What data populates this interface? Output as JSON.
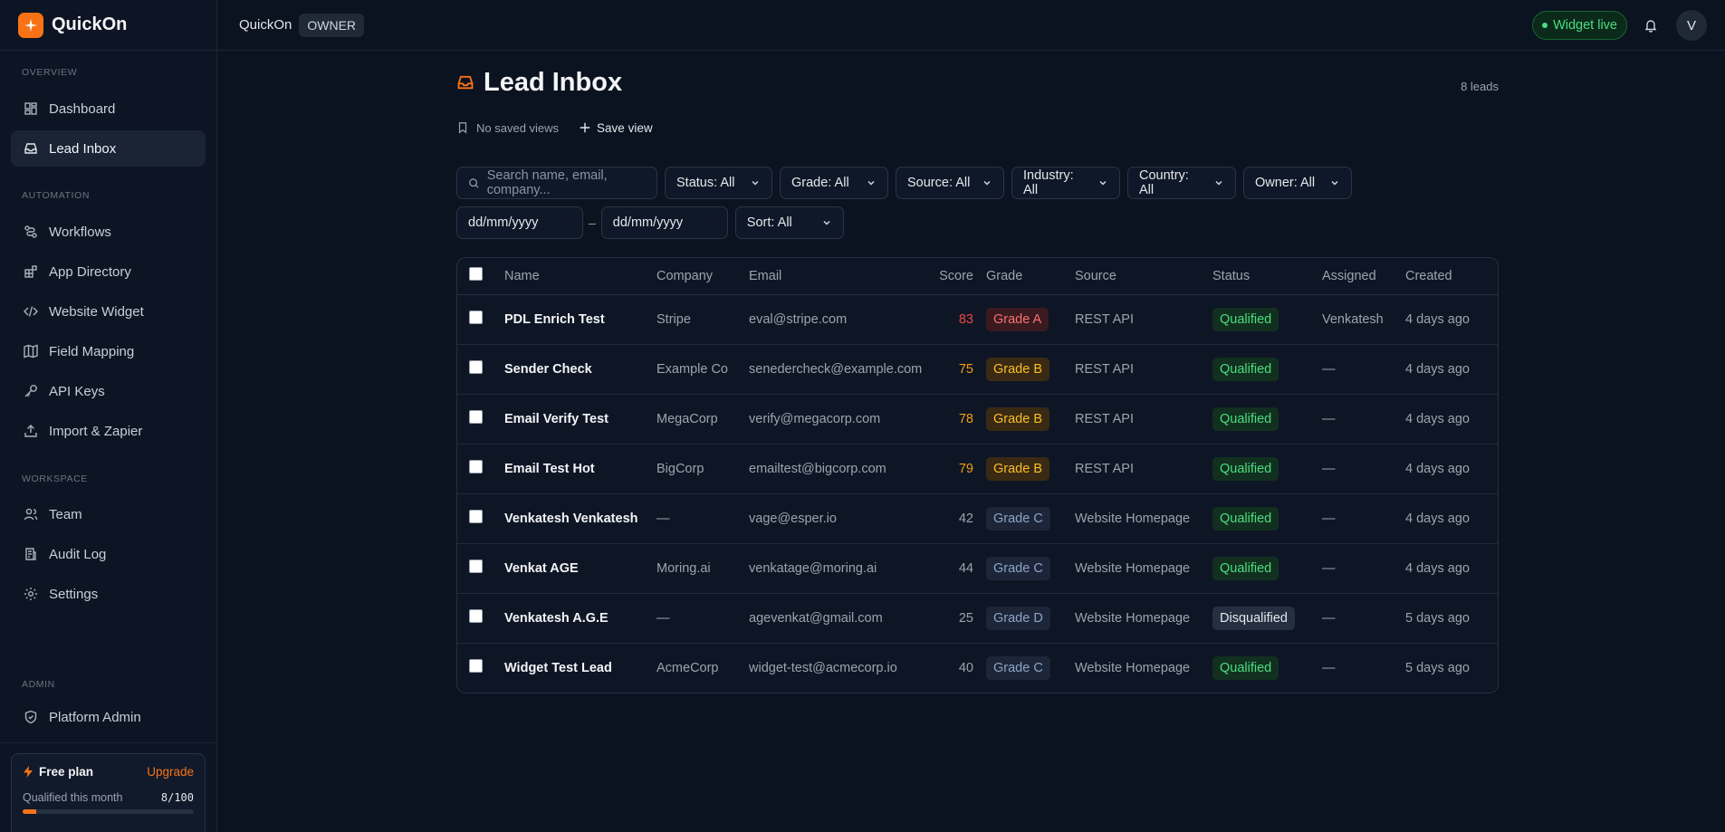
{
  "brand": {
    "name": "QuickOn"
  },
  "sidebar": {
    "sections": [
      {
        "label": "OVERVIEW",
        "items": [
          {
            "label": "Dashboard",
            "icon": "dashboard-icon",
            "active": false
          },
          {
            "label": "Lead Inbox",
            "icon": "inbox-icon",
            "active": true
          }
        ]
      },
      {
        "label": "AUTOMATION",
        "items": [
          {
            "label": "Workflows",
            "icon": "workflow-icon",
            "active": false
          },
          {
            "label": "App Directory",
            "icon": "apps-icon",
            "active": false
          },
          {
            "label": "Website Widget",
            "icon": "code-icon",
            "active": false
          },
          {
            "label": "Field Mapping",
            "icon": "map-icon",
            "active": false
          },
          {
            "label": "API Keys",
            "icon": "key-icon",
            "active": false
          },
          {
            "label": "Import & Zapier",
            "icon": "upload-icon",
            "active": false
          }
        ]
      },
      {
        "label": "WORKSPACE",
        "items": [
          {
            "label": "Team",
            "icon": "users-icon",
            "active": false
          },
          {
            "label": "Audit Log",
            "icon": "log-icon",
            "active": false
          },
          {
            "label": "Settings",
            "icon": "gear-icon",
            "active": false
          }
        ]
      },
      {
        "label": "ADMIN",
        "items": [
          {
            "label": "Platform Admin",
            "icon": "shield-icon",
            "active": false
          }
        ]
      }
    ],
    "plan": {
      "name": "Free plan",
      "upgrade_label": "Upgrade",
      "usage_label": "Qualified this month",
      "usage_value": "8/100",
      "usage_fraction": 0.08
    }
  },
  "topbar": {
    "workspace": "QuickOn",
    "role": "OWNER",
    "widget_status": "Widget live",
    "avatar_initial": "V"
  },
  "page": {
    "title": "Lead Inbox",
    "lead_count": "8 leads",
    "saved_views_label": "No saved views",
    "save_view_label": "Save view"
  },
  "filters": {
    "search_placeholder": "Search name, email, company...",
    "dropdowns": [
      "Status: All",
      "Grade: All",
      "Source: All",
      "Industry: All",
      "Country: All",
      "Owner: All"
    ],
    "date_from": "dd/mm/yyyy",
    "date_to": "dd/mm/yyyy",
    "date_separator": "–",
    "sort": "Sort: All"
  },
  "table": {
    "columns": [
      "Name",
      "Company",
      "Email",
      "Score",
      "Grade",
      "Source",
      "Status",
      "Assigned",
      "Created"
    ],
    "rows": [
      {
        "name": "PDL Enrich Test",
        "company": "Stripe",
        "email": "eval@stripe.com",
        "score": "83",
        "grade": "Grade A",
        "source": "REST API",
        "status": "Qualified",
        "assigned": "Venkatesh",
        "created": "4 days ago"
      },
      {
        "name": "Sender Check",
        "company": "Example Co",
        "email": "senedercheck@example.com",
        "score": "75",
        "grade": "Grade B",
        "source": "REST API",
        "status": "Qualified",
        "assigned": "—",
        "created": "4 days ago"
      },
      {
        "name": "Email Verify Test",
        "company": "MegaCorp",
        "email": "verify@megacorp.com",
        "score": "78",
        "grade": "Grade B",
        "source": "REST API",
        "status": "Qualified",
        "assigned": "—",
        "created": "4 days ago"
      },
      {
        "name": "Email Test Hot",
        "company": "BigCorp",
        "email": "emailtest@bigcorp.com",
        "score": "79",
        "grade": "Grade B",
        "source": "REST API",
        "status": "Qualified",
        "assigned": "—",
        "created": "4 days ago"
      },
      {
        "name": "Venkatesh Venkatesh",
        "company": "—",
        "email": "vage@esper.io",
        "score": "42",
        "grade": "Grade C",
        "source": "Website Homepage",
        "status": "Qualified",
        "assigned": "—",
        "created": "4 days ago"
      },
      {
        "name": "Venkat AGE",
        "company": "Moring.ai",
        "email": "venkatage@moring.ai",
        "score": "44",
        "grade": "Grade C",
        "source": "Website Homepage",
        "status": "Qualified",
        "assigned": "—",
        "created": "4 days ago"
      },
      {
        "name": "Venkatesh A.G.E",
        "company": "—",
        "email": "agevenkat@gmail.com",
        "score": "25",
        "grade": "Grade D",
        "source": "Website Homepage",
        "status": "Disqualified",
        "assigned": "—",
        "created": "5 days ago"
      },
      {
        "name": "Widget Test Lead",
        "company": "AcmeCorp",
        "email": "widget-test@acmecorp.io",
        "score": "40",
        "grade": "Grade C",
        "source": "Website Homepage",
        "status": "Qualified",
        "assigned": "—",
        "created": "5 days ago"
      }
    ]
  },
  "colors": {
    "accent": "#f97316",
    "grade_a_text": "#f87171",
    "grade_a_bg": "#3a1a1f",
    "grade_b_text": "#fbbf24",
    "grade_b_bg": "#3a2a14",
    "grade_c_text": "#8ea3c7",
    "grade_c_bg": "#1c2638",
    "grade_d_text": "#8ea3c7",
    "grade_d_bg": "#1c2638",
    "qualified_text": "#4ade80",
    "qualified_bg": "#12301f",
    "disqualified_text": "#e5e7eb",
    "disqualified_bg": "#243042",
    "score_hot": "#ef4444",
    "score_warm": "#f59e0b",
    "score_cold": "#9ca3af"
  }
}
